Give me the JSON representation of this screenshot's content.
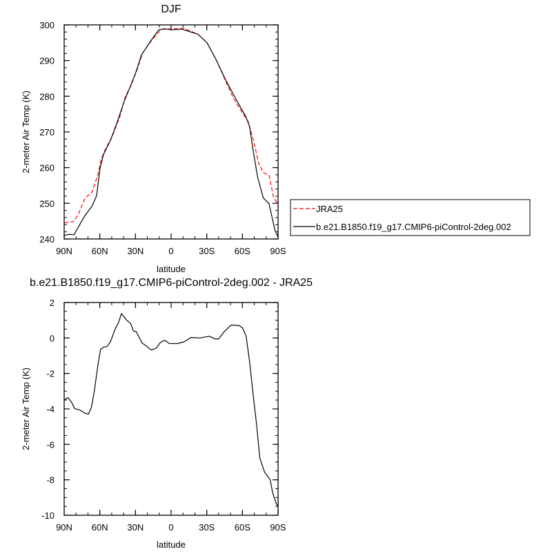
{
  "chart_data": [
    {
      "type": "line",
      "title": "DJF",
      "xlabel": "latitude",
      "ylabel": "2-meter Air Temp (K)",
      "xlim": [
        90,
        -90
      ],
      "ylim": [
        240,
        300
      ],
      "xticks": [
        90,
        60,
        30,
        0,
        -30,
        -60,
        -90
      ],
      "xtick_labels": [
        "90N",
        "60N",
        "30N",
        "0",
        "30S",
        "60S",
        "90S"
      ],
      "yticks": [
        240,
        250,
        260,
        270,
        280,
        290,
        300
      ],
      "ytick_labels": [
        "240",
        "250",
        "260",
        "270",
        "280",
        "290",
        "300"
      ],
      "legend_position": "right",
      "series": [
        {
          "name": "JRA25",
          "color": "#ff0000",
          "dash": "dashed",
          "x": [
            90,
            82,
            78,
            72.4,
            66.6,
            61.7,
            58.8,
            55,
            50.1,
            43.4,
            38.5,
            33.7,
            28.8,
            24,
            16.3,
            8.5,
            -1.2,
            -10.9,
            -22.4,
            -30.2,
            -37.9,
            -45.7,
            -52.4,
            -58.2,
            -65,
            -69.8,
            -73.7,
            -77.6,
            -82.4,
            -86.3,
            -90
          ],
          "y": [
            244.5,
            244.9,
            247,
            251.5,
            253.1,
            257.9,
            262.4,
            265.4,
            268.3,
            274.1,
            279.9,
            283.1,
            287.3,
            292.1,
            295.7,
            298.7,
            298.9,
            299.0,
            297.4,
            295,
            290.2,
            284.4,
            279.5,
            276.3,
            272.8,
            267,
            261.2,
            258.6,
            257.9,
            251.5,
            249.9
          ]
        },
        {
          "name": "b.e21.B1850.f19_g17.CMIP6-piControl-2deg.002",
          "color": "#000000",
          "dash": "solid",
          "x": [
            90,
            86,
            81.7,
            78,
            73,
            66.6,
            62.7,
            59.8,
            56.9,
            51.1,
            45.3,
            39.5,
            34.6,
            29.8,
            25,
            18.2,
            10.5,
            5.6,
            -1.2,
            -8.9,
            -22.4,
            -30.2,
            -37.9,
            -45.7,
            -53.4,
            -63.1,
            -66,
            -68.9,
            -72.8,
            -77.6,
            -82.4,
            -87.3,
            -90
          ],
          "y": [
            241.0,
            241.3,
            241.2,
            243.4,
            246.3,
            249.2,
            252.1,
            259.9,
            263.7,
            267.6,
            272.8,
            278.6,
            282.5,
            286.6,
            291.5,
            295.0,
            298.6,
            298.9,
            298.6,
            298.8,
            297.4,
            295.0,
            290.2,
            284.7,
            279.9,
            274.1,
            271.5,
            265.0,
            257.3,
            251.5,
            249.9,
            242.5,
            240.5
          ]
        }
      ]
    },
    {
      "type": "line",
      "title": "b.e21.B1850.f19_g17.CMIP6-piControl-2deg.002 - JRA25",
      "xlabel": "latitude",
      "ylabel": "2-meter Air Temp (K)",
      "xlim": [
        90,
        -90
      ],
      "ylim": [
        -10,
        2
      ],
      "xticks": [
        90,
        60,
        30,
        0,
        -30,
        -60,
        -90
      ],
      "xtick_labels": [
        "90N",
        "60N",
        "30N",
        "0",
        "30S",
        "60S",
        "90S"
      ],
      "yticks": [
        -10,
        -8,
        -6,
        -4,
        -2,
        0,
        2
      ],
      "ytick_labels": [
        "-10",
        "-8",
        "-6",
        "-4",
        "-2",
        "0",
        "2"
      ],
      "series": [
        {
          "color": "#000000",
          "dash": "solid",
          "x": [
            90,
            86.9,
            84,
            81.1,
            77.2,
            72.4,
            69.5,
            67,
            64.6,
            61.7,
            59.4,
            56.9,
            54,
            51.1,
            47.2,
            44.3,
            41.8,
            37.5,
            34.1,
            31.7,
            29.4,
            24.4,
            22.1,
            16.7,
            12.4,
            9.5,
            6.6,
            4.6,
            1.7,
            -5,
            -10.8,
            -16.6,
            -24.4,
            -32.1,
            -37,
            -39.9,
            -44.7,
            -50.5,
            -57.3,
            -60.2,
            -63.1,
            -66,
            -68.9,
            -71.8,
            -74.7,
            -78.6,
            -83.4,
            -85.4,
            -88.3,
            -90
          ],
          "y": [
            -3.5,
            -3.36,
            -3.6,
            -3.99,
            -4.05,
            -4.25,
            -4.29,
            -3.9,
            -3.0,
            -1.58,
            -0.65,
            -0.52,
            -0.48,
            -0.22,
            0.49,
            0.86,
            1.38,
            1.01,
            0.82,
            0.39,
            0.36,
            -0.29,
            -0.39,
            -0.68,
            -0.57,
            -0.29,
            -0.16,
            -0.16,
            -0.31,
            -0.32,
            -0.22,
            0.03,
            0,
            0.1,
            -0.05,
            -0.06,
            0.36,
            0.73,
            0.7,
            0.56,
            0.1,
            -1.32,
            -3.14,
            -4.83,
            -6.78,
            -7.56,
            -8.0,
            -8.73,
            -9.31,
            -9.51
          ]
        }
      ]
    }
  ]
}
